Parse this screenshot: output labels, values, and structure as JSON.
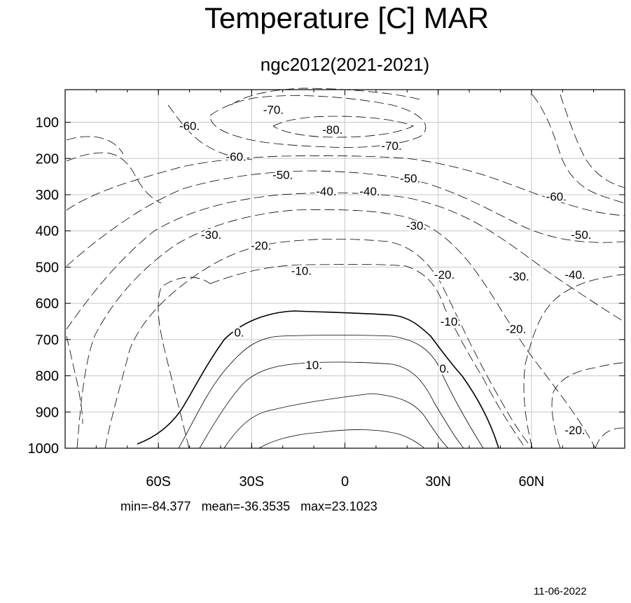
{
  "chart_data": {
    "type": "contour",
    "title": "Temperature [C] MAR",
    "subtitle": "ngc2012(2021-2021)",
    "xlabel": "",
    "ylabel": "",
    "xlim": [
      -90,
      90
    ],
    "ylim": [
      1000,
      10
    ],
    "x_ticks": [
      {
        "value": -60,
        "label": "60S"
      },
      {
        "value": -30,
        "label": "30S"
      },
      {
        "value": 0,
        "label": "0"
      },
      {
        "value": 30,
        "label": "30N"
      },
      {
        "value": 60,
        "label": "60N"
      }
    ],
    "y_ticks": [
      {
        "value": 100,
        "label": "100"
      },
      {
        "value": 200,
        "label": "200"
      },
      {
        "value": 300,
        "label": "300"
      },
      {
        "value": 400,
        "label": "400"
      },
      {
        "value": 500,
        "label": "500"
      },
      {
        "value": 600,
        "label": "600"
      },
      {
        "value": 700,
        "label": "700"
      },
      {
        "value": 800,
        "label": "800"
      },
      {
        "value": 900,
        "label": "900"
      },
      {
        "value": 1000,
        "label": "1000"
      }
    ],
    "grid": true,
    "contour_interval": 10,
    "negative_style": "dashed",
    "contour_labels": [
      {
        "text": "-70.",
        "lat": -23,
        "p": 65
      },
      {
        "text": "-80.",
        "lat": -4,
        "p": 120
      },
      {
        "text": "-70.",
        "lat": 15,
        "p": 165
      },
      {
        "text": "-60.",
        "lat": -50,
        "p": 110
      },
      {
        "text": "-60.",
        "lat": -35,
        "p": 195
      },
      {
        "text": "-50.",
        "lat": -20,
        "p": 245
      },
      {
        "text": "-50.",
        "lat": 21,
        "p": 255
      },
      {
        "text": "-40.",
        "lat": -6,
        "p": 290
      },
      {
        "text": "-40.",
        "lat": 8,
        "p": 290
      },
      {
        "text": "-60.",
        "lat": 68,
        "p": 305
      },
      {
        "text": "-30.",
        "lat": -43,
        "p": 410
      },
      {
        "text": "-30.",
        "lat": 23,
        "p": 385
      },
      {
        "text": "-50.",
        "lat": 76,
        "p": 410
      },
      {
        "text": "-20.",
        "lat": -27,
        "p": 440
      },
      {
        "text": "-10.",
        "lat": -14,
        "p": 510
      },
      {
        "text": "-20.",
        "lat": 32,
        "p": 520
      },
      {
        "text": "-30.",
        "lat": 56,
        "p": 525
      },
      {
        "text": "-40.",
        "lat": 74,
        "p": 520
      },
      {
        "text": "-10.",
        "lat": 34,
        "p": 650
      },
      {
        "text": "-20.",
        "lat": 55,
        "p": 670
      },
      {
        "text": "0.",
        "lat": -34,
        "p": 680
      },
      {
        "text": "10.",
        "lat": -10,
        "p": 770
      },
      {
        "text": "0.",
        "lat": 32,
        "p": 780
      },
      {
        "text": "-20.",
        "lat": 74,
        "p": 950
      }
    ],
    "stats": {
      "min": -84.377,
      "mean": -36.3535,
      "max": 23.1023
    }
  },
  "stats_text": "min=-84.377   mean=-36.3535   max=23.1023",
  "date": "11-06-2022"
}
